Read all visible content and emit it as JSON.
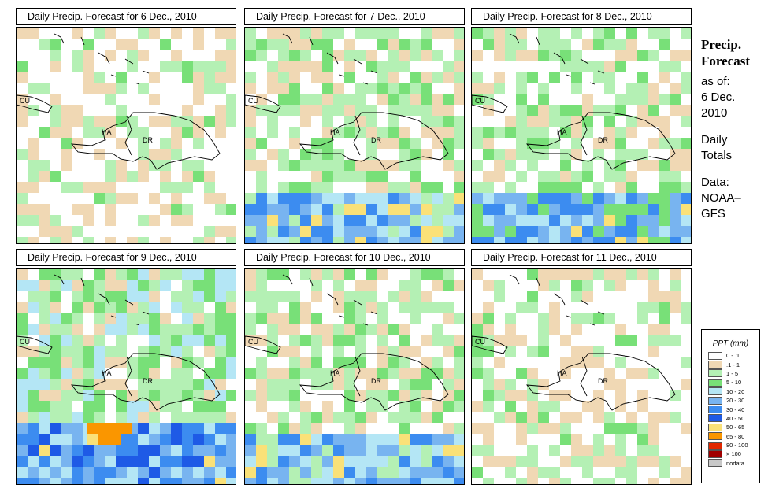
{
  "panels": [
    {
      "title": "Daily Precip. Forecast for  6 Dec., 2010",
      "level": 0
    },
    {
      "title": "Daily Precip. Forecast for  7 Dec., 2010",
      "level": 1
    },
    {
      "title": "Daily Precip. Forecast for  8 Dec., 2010",
      "level": 2
    },
    {
      "title": "Daily Precip. Forecast for  9 Dec., 2010",
      "level": 3
    },
    {
      "title": "Daily Precip. Forecast for  10 Dec., 2010",
      "level": 1
    },
    {
      "title": "Daily Precip. Forecast for  11 Dec., 2010",
      "level": 0
    }
  ],
  "map_labels": {
    "cuba": "CU",
    "haiti": "HA",
    "dominican_republic": "DR"
  },
  "sidebar": {
    "heading_line1": "Precip.",
    "heading_line2": "Forecast",
    "as_of": "as of:",
    "date_line1": "6 Dec.",
    "date_line2": "2010",
    "totals_line1": "Daily",
    "totals_line2": "Totals",
    "data_line1": "Data:",
    "data_line2": "NOAA–",
    "data_line3": "GFS"
  },
  "legend": {
    "title": "PPT (mm)",
    "items": [
      {
        "label": "0 - .1",
        "color": "#ffffff"
      },
      {
        "label": ".1 - 1",
        "color": "#f0d8b4"
      },
      {
        "label": "1 - 5",
        "color": "#b4f0b4"
      },
      {
        "label": "5 - 10",
        "color": "#78e078"
      },
      {
        "label": "10 - 20",
        "color": "#b4e6f5"
      },
      {
        "label": "20 - 30",
        "color": "#78b4f0"
      },
      {
        "label": "30 - 40",
        "color": "#3c8cf0"
      },
      {
        "label": "40 - 50",
        "color": "#1e5ae6"
      },
      {
        "label": "50 - 65",
        "color": "#fae178"
      },
      {
        "label": "65 - 80",
        "color": "#fa9600"
      },
      {
        "label": "80 - 100",
        "color": "#e12800"
      },
      {
        "label": "> 100",
        "color": "#a00000"
      },
      {
        "label": "nodata",
        "color": "#c8c8c8"
      }
    ]
  }
}
